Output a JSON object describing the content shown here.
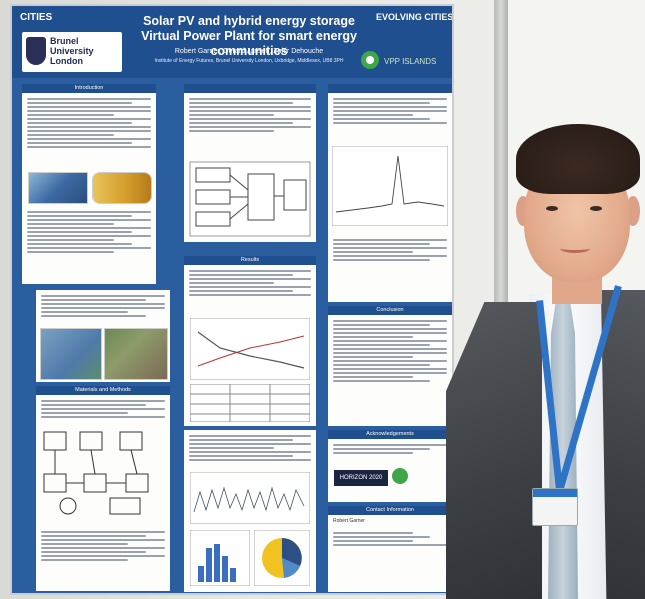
{
  "poster": {
    "title": "Solar PV and hybrid energy storage Virtual Power Plant for smart energy communities",
    "authors": "Robert Garner, Gerard Jansen, Zahir Dehouche",
    "affiliation": "Institute of Energy Futures, Brunel University London, Uxbridge, Middlesex, UB8 3PH",
    "left_logo": "CITIES",
    "university": "Brunel University London",
    "right_logo": "EVOLVING CITIES",
    "partner_logo": "VPP ISLANDS",
    "sections": {
      "introduction": "Introduction",
      "materials": "Materials and Methods",
      "results": "Results",
      "conclusion": "Conclusion",
      "acknowledgements": "Acknowledgements",
      "contact": "Contact Information"
    },
    "contact_name": "Robert Garner",
    "horizon": "HORIZON 2020"
  },
  "colors": {
    "poster_blue": "#2b5e9e",
    "header_blue": "#1f4f8f",
    "lanyard_blue": "#2f73c7",
    "jacket_grey": "#3c3f44"
  }
}
